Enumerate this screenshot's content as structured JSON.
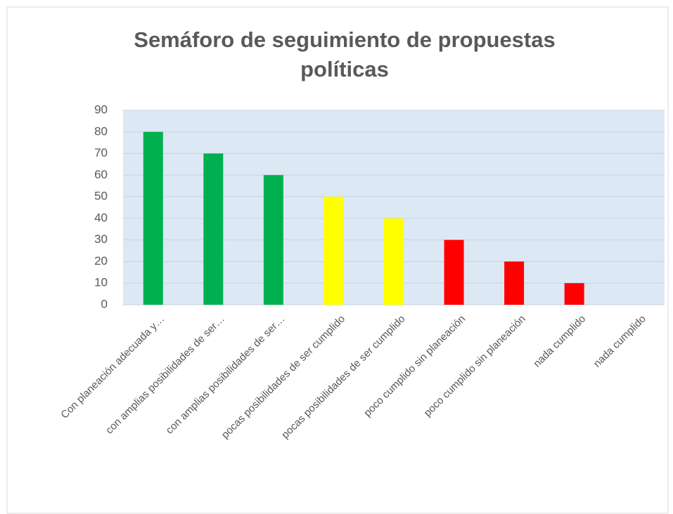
{
  "chart_data": {
    "type": "bar",
    "title": "Semáforo de seguimiento de propuestas políticas",
    "categories": [
      "Con planeación adecuada y…",
      "con amplias posibilidades de ser…",
      "con amplias posibilidades de ser…",
      "pocas posibilidades de ser cumplido",
      "pocas posibilidades de ser cumplido",
      "poco cumplido sin planeación",
      "poco cumplido sin planeación",
      "nada cumplido",
      "nada cumplido"
    ],
    "values": [
      80,
      70,
      60,
      50,
      40,
      30,
      20,
      10,
      0
    ],
    "colors": [
      "#00b050",
      "#00b050",
      "#00b050",
      "#ffff00",
      "#ffff00",
      "#ff0000",
      "#ff0000",
      "#ff0000",
      "#ff0000"
    ],
    "ylim": [
      0,
      90
    ],
    "yticks": [
      0,
      10,
      20,
      30,
      40,
      50,
      60,
      70,
      80,
      90
    ],
    "grid": true
  }
}
